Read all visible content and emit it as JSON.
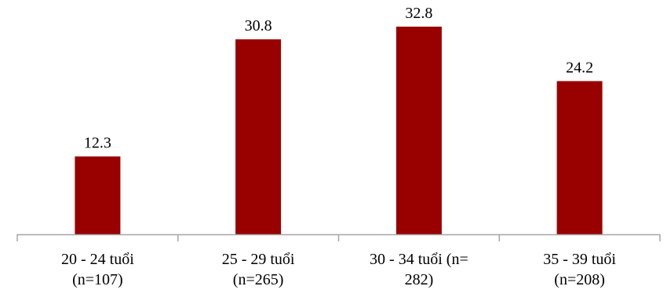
{
  "chart_data": {
    "type": "bar",
    "categories": [
      [
        "20 - 24 tuổi",
        "(n=107)"
      ],
      [
        "25 - 29 tuổi",
        "(n=265)"
      ],
      [
        "30 - 34 tuổi (n=",
        "282)"
      ],
      [
        "35 - 39 tuổi",
        "(n=208)"
      ]
    ],
    "values": [
      12.3,
      30.8,
      32.8,
      24.2
    ],
    "data_labels": [
      "12.3",
      "30.8",
      "32.8",
      "24.2"
    ],
    "title": "",
    "xlabel": "",
    "ylabel": "",
    "ylim": [
      0,
      32.8
    ],
    "grid": false,
    "legend": "none",
    "bar_color": "#990000",
    "axis_color": "#a6a6a6"
  }
}
